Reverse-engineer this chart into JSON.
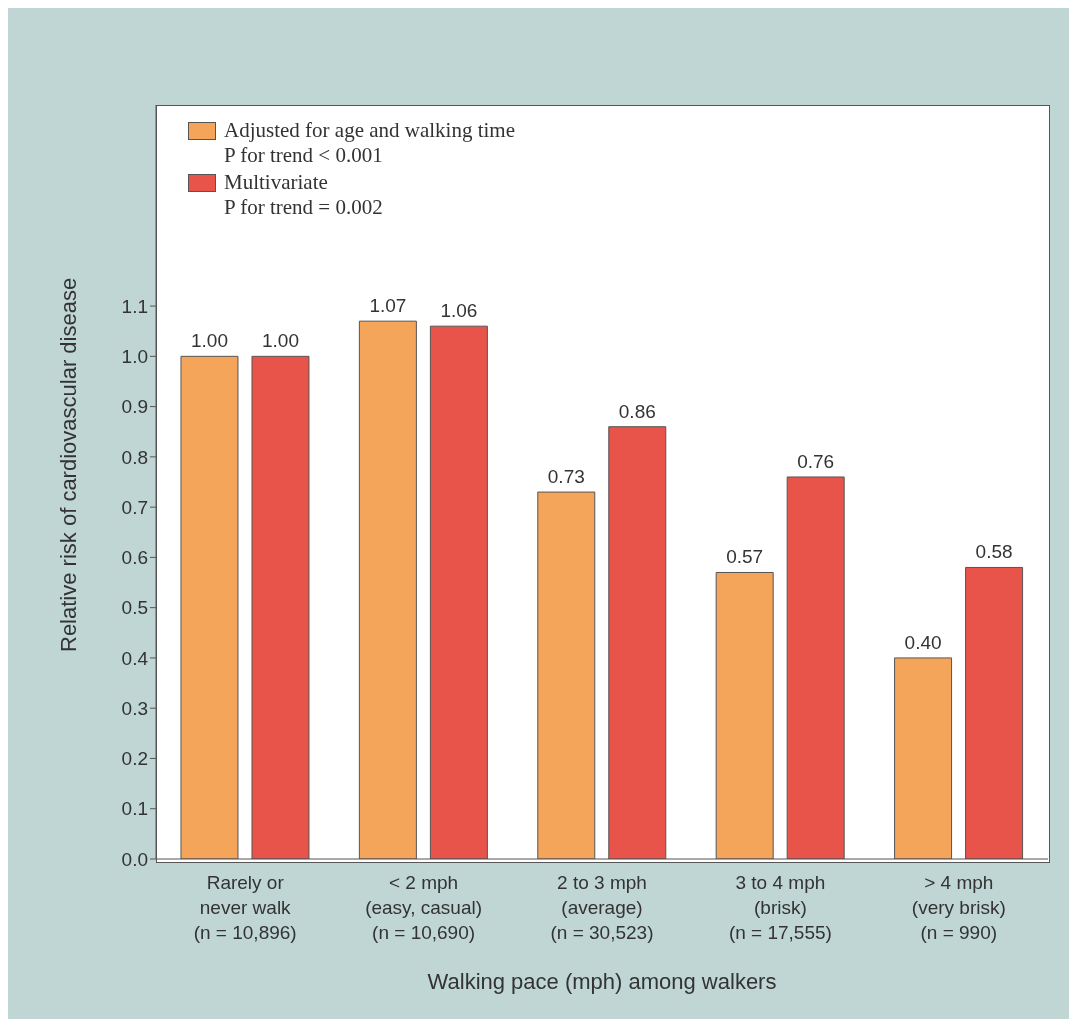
{
  "chart_data": {
    "type": "bar",
    "xlabel": "Walking pace (mph) among walkers",
    "ylabel": "Relative risk of cardiovascular disease",
    "categories": [
      "Rarely or\nnever walk\n(n = 10,896)",
      "< 2 mph\n(easy, casual)\n(n = 10,690)",
      "2 to 3 mph\n(average)\n(n = 30,523)",
      "3 to 4 mph\n(brisk)\n(n = 17,555)",
      "> 4 mph\n(very brisk)\n(n = 990)"
    ],
    "series": [
      {
        "name": "Adjusted for age and walking time",
        "color": "#f5a55a",
        "values": [
          1.0,
          1.07,
          0.73,
          0.57,
          0.4
        ],
        "value_labels": [
          "1.00",
          "1.07",
          "0.73",
          "0.57",
          "0.40"
        ]
      },
      {
        "name": "Multivariate",
        "color": "#e8534a",
        "values": [
          1.0,
          1.06,
          0.86,
          0.76,
          0.58
        ],
        "value_labels": [
          "1.00",
          "1.06",
          "0.86",
          "0.76",
          "0.58"
        ]
      }
    ],
    "annotations": [
      "P for trend < 0.001",
      "P for trend = 0.002"
    ],
    "ylim": [
      0,
      1.5
    ],
    "yticks": [
      {
        "value": 0,
        "label": "0.0"
      },
      0.1,
      0.2,
      0.3,
      0.4,
      0.5,
      0.6,
      0.7,
      0.8,
      0.9,
      {
        "value": 1,
        "label": "1.0"
      },
      1.1
    ],
    "grid": false,
    "legend": "top left"
  }
}
